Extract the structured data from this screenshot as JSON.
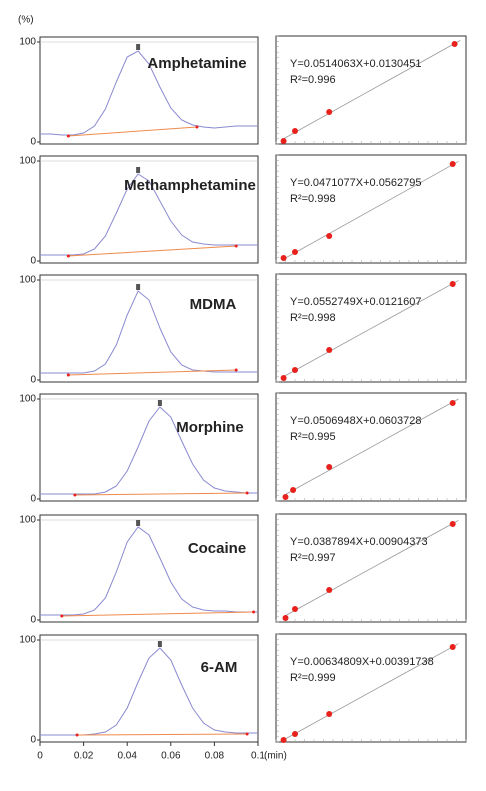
{
  "chart_data": [
    {
      "type": "line",
      "title": "Amphetamine",
      "ylabel": "(%)",
      "x": [
        0,
        0.005,
        0.01,
        0.015,
        0.02,
        0.025,
        0.03,
        0.035,
        0.04,
        0.045,
        0.05,
        0.055,
        0.06,
        0.065,
        0.07,
        0.075,
        0.08,
        0.085,
        0.09,
        0.095,
        0.1
      ],
      "series": [
        {
          "color": "#8a8ad0",
          "values": [
            8,
            8,
            7,
            7,
            9,
            16,
            33,
            60,
            85,
            91,
            78,
            55,
            34,
            22,
            17,
            15,
            14,
            15,
            16,
            16,
            16
          ]
        },
        {
          "color": "#f08a4b",
          "x": [
            0.013,
            0.072
          ],
          "values": [
            6,
            15
          ]
        }
      ],
      "xlim": [
        0,
        0.1
      ],
      "ylim": [
        0,
        100
      ],
      "yticks": [
        0,
        100
      ]
    },
    {
      "type": "line",
      "title": "Methamphetamine",
      "x": [
        0,
        0.005,
        0.01,
        0.015,
        0.02,
        0.025,
        0.03,
        0.035,
        0.04,
        0.045,
        0.05,
        0.055,
        0.06,
        0.065,
        0.07,
        0.075,
        0.08,
        0.085,
        0.09,
        0.095,
        0.1
      ],
      "series": [
        {
          "color": "#8a8ad0",
          "values": [
            6,
            6,
            6,
            6,
            7,
            12,
            25,
            48,
            72,
            87,
            80,
            60,
            40,
            26,
            19,
            17,
            16,
            16,
            16,
            16,
            16
          ]
        },
        {
          "color": "#f08a4b",
          "x": [
            0.013,
            0.09
          ],
          "values": [
            5,
            15
          ]
        }
      ],
      "xlim": [
        0,
        0.1
      ],
      "ylim": [
        0,
        100
      ],
      "yticks": [
        0,
        100
      ]
    },
    {
      "type": "line",
      "title": "MDMA",
      "x": [
        0,
        0.005,
        0.01,
        0.015,
        0.02,
        0.025,
        0.03,
        0.035,
        0.04,
        0.045,
        0.05,
        0.055,
        0.06,
        0.065,
        0.07,
        0.075,
        0.08,
        0.085,
        0.09,
        0.095,
        0.1
      ],
      "series": [
        {
          "color": "#8a8ad0",
          "values": [
            7,
            7,
            7,
            7,
            7,
            9,
            16,
            35,
            65,
            89,
            80,
            52,
            28,
            15,
            10,
            9,
            8,
            8,
            8,
            8,
            8
          ]
        },
        {
          "color": "#f08a4b",
          "x": [
            0.013,
            0.09
          ],
          "values": [
            5,
            10
          ]
        }
      ],
      "xlim": [
        0,
        0.1
      ],
      "ylim": [
        0,
        100
      ],
      "yticks": [
        0,
        100
      ]
    },
    {
      "type": "line",
      "title": "Morphine",
      "x": [
        0,
        0.005,
        0.01,
        0.015,
        0.02,
        0.025,
        0.03,
        0.035,
        0.04,
        0.045,
        0.05,
        0.055,
        0.06,
        0.065,
        0.07,
        0.075,
        0.08,
        0.085,
        0.09,
        0.095,
        0.1
      ],
      "series": [
        {
          "color": "#8a8ad0",
          "values": [
            5,
            5,
            5,
            5,
            5,
            5,
            7,
            13,
            28,
            52,
            78,
            92,
            82,
            58,
            35,
            19,
            11,
            8,
            7,
            6,
            6
          ]
        },
        {
          "color": "#f08a4b",
          "x": [
            0.016,
            0.095
          ],
          "values": [
            4,
            6
          ]
        }
      ],
      "xlim": [
        0,
        0.1
      ],
      "ylim": [
        0,
        100
      ],
      "yticks": [
        0,
        100
      ]
    },
    {
      "type": "line",
      "title": "Cocaine",
      "x": [
        0,
        0.005,
        0.01,
        0.015,
        0.02,
        0.025,
        0.03,
        0.035,
        0.04,
        0.045,
        0.05,
        0.055,
        0.06,
        0.065,
        0.07,
        0.075,
        0.08,
        0.085,
        0.09,
        0.095,
        0.1
      ],
      "series": [
        {
          "color": "#8a8ad0",
          "values": [
            5,
            5,
            5,
            5,
            6,
            10,
            22,
            48,
            78,
            93,
            85,
            62,
            38,
            21,
            13,
            10,
            9,
            9,
            8,
            8,
            8
          ]
        },
        {
          "color": "#f08a4b",
          "x": [
            0.01,
            0.098
          ],
          "values": [
            4,
            8
          ]
        }
      ],
      "xlim": [
        0,
        0.1
      ],
      "ylim": [
        0,
        100
      ],
      "yticks": [
        0,
        100
      ]
    },
    {
      "type": "line",
      "title": "6-AM",
      "xlabel": "(min)",
      "x": [
        0,
        0.005,
        0.01,
        0.015,
        0.02,
        0.025,
        0.03,
        0.035,
        0.04,
        0.045,
        0.05,
        0.055,
        0.06,
        0.065,
        0.07,
        0.075,
        0.08,
        0.085,
        0.09,
        0.095,
        0.1
      ],
      "series": [
        {
          "color": "#8a8ad0",
          "values": [
            5,
            5,
            5,
            5,
            5,
            6,
            8,
            15,
            32,
            58,
            82,
            92,
            80,
            55,
            32,
            17,
            10,
            8,
            7,
            7,
            7
          ]
        },
        {
          "color": "#f08a4b",
          "x": [
            0.017,
            0.095
          ],
          "values": [
            5,
            6
          ]
        }
      ],
      "xlim": [
        0,
        0.1
      ],
      "ylim": [
        0,
        100
      ],
      "yticks": [
        0,
        100
      ],
      "xticks": [
        0,
        0.02,
        0.04,
        0.06,
        0.08,
        0.1
      ]
    },
    {
      "type": "scatter",
      "annotations": [
        "Y=0.0514063X+0.0130451",
        "R²=0.996"
      ],
      "color": "#e8211d",
      "x": [
        0.04,
        0.1,
        0.28,
        0.94
      ],
      "values": [
        0.01,
        0.11,
        0.3,
        0.98
      ],
      "xlim": [
        0,
        1
      ],
      "ylim": [
        0,
        1
      ]
    },
    {
      "type": "scatter",
      "annotations": [
        "Y=0.0471077X+0.0562795",
        "R²=0.998"
      ],
      "color": "#e8211d",
      "x": [
        0.04,
        0.1,
        0.28,
        0.93
      ],
      "values": [
        0.03,
        0.09,
        0.25,
        0.97
      ],
      "xlim": [
        0,
        1
      ],
      "ylim": [
        0,
        1
      ]
    },
    {
      "type": "scatter",
      "annotations": [
        "Y=0.0552749X+0.0121607",
        "R²=0.998"
      ],
      "color": "#e8211d",
      "x": [
        0.04,
        0.1,
        0.28,
        0.93
      ],
      "values": [
        0.02,
        0.1,
        0.3,
        0.96
      ],
      "xlim": [
        0,
        1
      ],
      "ylim": [
        0,
        1
      ]
    },
    {
      "type": "scatter",
      "annotations": [
        "Y=0.0506948X+0.0603728",
        "R²=0.995"
      ],
      "color": "#e8211d",
      "x": [
        0.05,
        0.09,
        0.28,
        0.93
      ],
      "values": [
        0.02,
        0.09,
        0.32,
        0.96
      ],
      "xlim": [
        0,
        1
      ],
      "ylim": [
        0,
        1
      ]
    },
    {
      "type": "scatter",
      "annotations": [
        "Y=0.0387894X+0.00904373",
        "R²=0.997"
      ],
      "color": "#e8211d",
      "x": [
        0.05,
        0.1,
        0.28,
        0.93
      ],
      "values": [
        0.02,
        0.11,
        0.3,
        0.96
      ],
      "xlim": [
        0,
        1
      ],
      "ylim": [
        0,
        1
      ]
    },
    {
      "type": "scatter",
      "annotations": [
        "Y=0.00634809X+0.00391738",
        "R²=0.999"
      ],
      "color": "#e8211d",
      "x": [
        0.04,
        0.1,
        0.28,
        0.93
      ],
      "values": [
        0.0,
        0.06,
        0.26,
        0.93
      ],
      "xlim": [
        0,
        1
      ],
      "ylim": [
        0,
        1
      ]
    }
  ]
}
